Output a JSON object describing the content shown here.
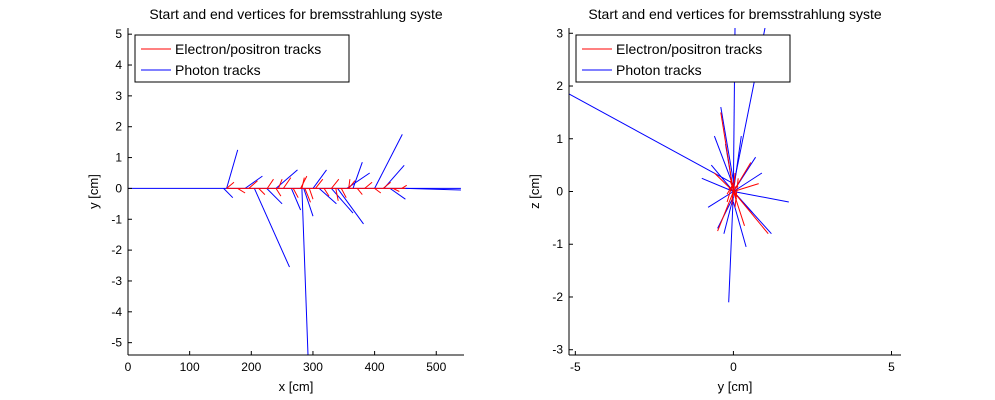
{
  "chart_data": [
    {
      "type": "line",
      "title": "Start and end vertices for bremsstrahlung syste",
      "xlabel": "x [cm]",
      "ylabel": "y [cm]",
      "xlim": [
        0,
        545
      ],
      "ylim": [
        -5.4,
        5.2
      ],
      "xticks": [
        "0",
        "100",
        "200",
        "300",
        "400",
        "500"
      ],
      "yticks": [
        "-5",
        "-4",
        "-3",
        "-2",
        "-1",
        "0",
        "1",
        "2",
        "3",
        "4",
        "5"
      ],
      "legend": {
        "position": "top-left",
        "entries": [
          "Electron/positron tracks",
          "Photon tracks"
        ]
      },
      "colors": {
        "electron": "#ff0000",
        "photon": "#0000ff"
      },
      "series": [
        {
          "name": "Photon tracks",
          "segments": [
            [
              [
                0,
                0
              ],
              [
                540,
                0
              ]
            ],
            [
              [
                282,
                0
              ],
              [
                292,
                -5.4
              ]
            ],
            [
              [
                205,
                0
              ],
              [
                262,
                -2.55
              ]
            ],
            [
              [
                160,
                0
              ],
              [
                178,
                1.25
              ]
            ],
            [
              [
                155,
                0
              ],
              [
                170,
                -0.3
              ]
            ],
            [
              [
                400,
                0
              ],
              [
                445,
                1.75
              ]
            ],
            [
              [
                330,
                0
              ],
              [
                365,
                -0.8
              ]
            ],
            [
              [
                340,
                0
              ],
              [
                382,
                -1.15
              ]
            ],
            [
              [
                265,
                0
              ],
              [
                280,
                -0.7
              ]
            ],
            [
              [
                310,
                0
              ],
              [
                338,
                -0.5
              ]
            ],
            [
              [
                240,
                0
              ],
              [
                275,
                0.6
              ]
            ],
            [
              [
                355,
                0
              ],
              [
                392,
                0.5
              ]
            ],
            [
              [
                415,
                0
              ],
              [
                448,
                0.75
              ]
            ],
            [
              [
                190,
                0
              ],
              [
                218,
                0.4
              ]
            ],
            [
              [
                225,
                0
              ],
              [
                250,
                -0.5
              ]
            ],
            [
              [
                300,
                0
              ],
              [
                322,
                0.6
              ]
            ],
            [
              [
                425,
                0
              ],
              [
                450,
                -0.35
              ]
            ],
            [
              [
                365,
                0
              ],
              [
                380,
                0.85
              ]
            ],
            [
              [
                285,
                0
              ],
              [
                300,
                -0.9
              ]
            ],
            [
              [
                450,
                0
              ],
              [
                540,
                -0.05
              ]
            ]
          ]
        },
        {
          "name": "Electron/positron tracks",
          "segments": [
            [
              [
                160,
                0
              ],
              [
                450,
                0
              ]
            ],
            [
              [
                160,
                0
              ],
              [
                172,
                0.2
              ]
            ],
            [
              [
                178,
                0
              ],
              [
                190,
                -0.15
              ]
            ],
            [
              [
                196,
                0
              ],
              [
                210,
                0.25
              ]
            ],
            [
              [
                212,
                0
              ],
              [
                222,
                -0.2
              ]
            ],
            [
              [
                226,
                0
              ],
              [
                236,
                0.3
              ]
            ],
            [
              [
                240,
                0
              ],
              [
                248,
                -0.25
              ]
            ],
            [
              [
                252,
                0
              ],
              [
                264,
                0.35
              ]
            ],
            [
              [
                268,
                0
              ],
              [
                276,
                -0.3
              ]
            ],
            [
              [
                280,
                0
              ],
              [
                290,
                0.4
              ]
            ],
            [
              [
                294,
                0
              ],
              [
                300,
                -0.35
              ]
            ],
            [
              [
                304,
                0
              ],
              [
                316,
                0.3
              ]
            ],
            [
              [
                318,
                0
              ],
              [
                326,
                -0.25
              ]
            ],
            [
              [
                330,
                0
              ],
              [
                342,
                0.3
              ]
            ],
            [
              [
                346,
                0
              ],
              [
                354,
                -0.3
              ]
            ],
            [
              [
                358,
                0
              ],
              [
                368,
                0.25
              ]
            ],
            [
              [
                372,
                0
              ],
              [
                380,
                -0.2
              ]
            ],
            [
              [
                384,
                0
              ],
              [
                396,
                0.2
              ]
            ],
            [
              [
                400,
                0
              ],
              [
                410,
                -0.15
              ]
            ],
            [
              [
                414,
                0
              ],
              [
                426,
                0.2
              ]
            ],
            [
              [
                430,
                0
              ],
              [
                440,
                -0.1
              ]
            ],
            [
              [
                444,
                0
              ],
              [
                452,
                0.1
              ]
            ],
            [
              [
                282,
                0
              ],
              [
                286,
                0.35
              ]
            ],
            [
              [
                287,
                0
              ],
              [
                296,
                -0.45
              ]
            ],
            [
              [
                244,
                0
              ],
              [
                250,
                0.3
              ]
            ],
            [
              [
                337,
                0
              ],
              [
                341,
                -0.4
              ]
            ],
            [
              [
                358,
                0
              ],
              [
                360,
                0.3
              ]
            ]
          ]
        }
      ]
    },
    {
      "type": "line",
      "title": "Start and end vertices for bremsstrahlung syste",
      "xlabel": "y [cm]",
      "ylabel": "z [cm]",
      "xlim": [
        -5.2,
        5.3
      ],
      "ylim": [
        -3.1,
        3.1
      ],
      "xticks": [
        "-5",
        "0",
        "5"
      ],
      "yticks": [
        "-3",
        "-2",
        "-1",
        "0",
        "1",
        "2",
        "3"
      ],
      "legend": {
        "position": "top-left",
        "entries": [
          "Electron/positron tracks",
          "Photon tracks"
        ]
      },
      "colors": {
        "electron": "#ff0000",
        "photon": "#0000ff"
      },
      "series": [
        {
          "name": "Photon tracks",
          "segments": [
            [
              [
                0,
                0.15
              ],
              [
                -5.2,
                1.85
              ]
            ],
            [
              [
                0,
                0.1
              ],
              [
                1.0,
                3.1
              ]
            ],
            [
              [
                0,
                0.1
              ],
              [
                0.05,
                3.1
              ]
            ],
            [
              [
                0,
                0
              ],
              [
                -0.15,
                -2.1
              ]
            ],
            [
              [
                0,
                0
              ],
              [
                1.75,
                -0.2
              ]
            ],
            [
              [
                0,
                0
              ],
              [
                1.2,
                -0.8
              ]
            ],
            [
              [
                0,
                0.2
              ],
              [
                -0.4,
                1.6
              ]
            ],
            [
              [
                0,
                0.1
              ],
              [
                -0.6,
                1.05
              ]
            ],
            [
              [
                0,
                0
              ],
              [
                0.7,
                0.65
              ]
            ],
            [
              [
                0,
                0
              ],
              [
                -0.8,
                -0.3
              ]
            ],
            [
              [
                0,
                -0.1
              ],
              [
                -0.5,
                -0.7
              ]
            ],
            [
              [
                0,
                -0.2
              ],
              [
                0.4,
                -1.05
              ]
            ],
            [
              [
                0,
                0
              ],
              [
                0.9,
                0.35
              ]
            ],
            [
              [
                0,
                0
              ],
              [
                -1.0,
                0.25
              ]
            ],
            [
              [
                0,
                -0.1
              ],
              [
                -0.3,
                -0.8
              ]
            ],
            [
              [
                0,
                0
              ],
              [
                0.25,
                1.05
              ]
            ],
            [
              [
                0,
                0
              ],
              [
                -0.25,
                0.9
              ]
            ],
            [
              [
                0,
                0
              ],
              [
                0.6,
                -0.4
              ]
            ],
            [
              [
                0,
                0
              ],
              [
                -0.7,
                0.5
              ]
            ]
          ]
        },
        {
          "name": "Electron/positron tracks",
          "segments": [
            [
              [
                -0.05,
                -0.2
              ],
              [
                0.05,
                0.3
              ]
            ],
            [
              [
                -0.1,
                0.25
              ],
              [
                0.1,
                -0.1
              ]
            ],
            [
              [
                0.05,
                0.35
              ],
              [
                -0.05,
                -0.25
              ]
            ],
            [
              [
                -0.15,
                0.05
              ],
              [
                0.15,
                0.1
              ]
            ],
            [
              [
                0.1,
                -0.15
              ],
              [
                -0.1,
                0.2
              ]
            ],
            [
              [
                -0.2,
                -0.05
              ],
              [
                0.05,
                0.2
              ]
            ],
            [
              [
                0.15,
                0.25
              ],
              [
                0.05,
                -0.3
              ]
            ],
            [
              [
                -0.05,
                0.1
              ],
              [
                -0.2,
                -0.2
              ]
            ],
            [
              [
                0,
                0
              ],
              [
                0.55,
                0.55
              ]
            ],
            [
              [
                0,
                0
              ],
              [
                -0.4,
                1.5
              ]
            ],
            [
              [
                0,
                0
              ],
              [
                1.1,
                -0.8
              ]
            ],
            [
              [
                0,
                0
              ],
              [
                -0.5,
                -0.75
              ]
            ],
            [
              [
                0,
                0
              ],
              [
                0.35,
                -0.65
              ]
            ],
            [
              [
                0,
                0
              ],
              [
                -0.6,
                0.35
              ]
            ],
            [
              [
                0,
                0
              ],
              [
                0.8,
                0.15
              ]
            ]
          ]
        }
      ]
    }
  ]
}
